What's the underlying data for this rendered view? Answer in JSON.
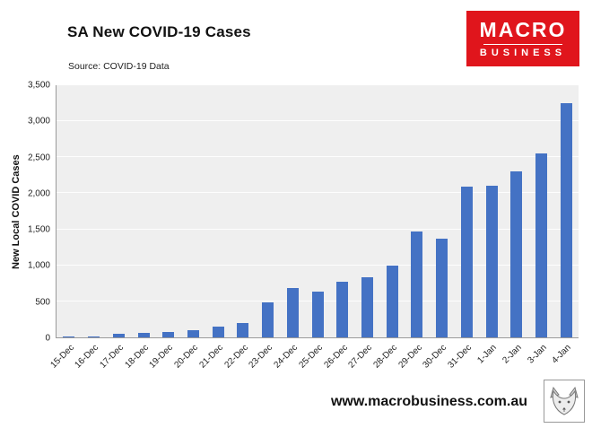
{
  "header": {
    "title": "SA New COVID-19 Cases",
    "source": "Source: COVID-19 Data"
  },
  "logo": {
    "line1": "MACRO",
    "line2": "BUSINESS",
    "bg_color": "#e0151c"
  },
  "chart_data": {
    "type": "bar",
    "title": "SA New COVID-19 Cases",
    "xlabel": "",
    "ylabel": "New Local COVID Cases",
    "ylim": [
      0,
      3500
    ],
    "ytick_step": 500,
    "grid": "horizontal-faint",
    "legend": "none",
    "bar_color": "#4472c4",
    "plot_bg": "#efefef",
    "categories": [
      "15-Dec",
      "16-Dec",
      "17-Dec",
      "18-Dec",
      "19-Dec",
      "20-Dec",
      "21-Dec",
      "22-Dec",
      "23-Dec",
      "24-Dec",
      "25-Dec",
      "26-Dec",
      "27-Dec",
      "28-Dec",
      "29-Dec",
      "30-Dec",
      "31-Dec",
      "1-Jan",
      "2-Jan",
      "3-Jan",
      "4-Jan"
    ],
    "values": [
      10,
      15,
      50,
      60,
      75,
      105,
      150,
      195,
      485,
      690,
      635,
      775,
      840,
      995,
      1470,
      1375,
      2090,
      2100,
      2300,
      2550,
      3250
    ]
  },
  "footer": {
    "url": "www.macrobusiness.com.au"
  }
}
